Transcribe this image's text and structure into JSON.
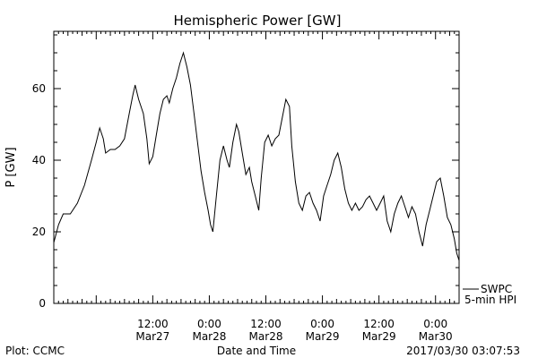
{
  "chart_data": {
    "type": "line",
    "title": "Hemispheric Power [GW]",
    "xlabel": "Date and Time",
    "ylabel": "P [GW]",
    "ylim": [
      0,
      76
    ],
    "yticks": [
      0,
      20,
      40,
      60
    ],
    "x_start": "2017-03-26T15:00",
    "x_end": "2017-03-30T05:00",
    "xticks": [
      {
        "x": "2017-03-27T12:00",
        "time": "12:00",
        "date": "Mar27"
      },
      {
        "x": "2017-03-28T00:00",
        "time": "0:00",
        "date": "Mar28"
      },
      {
        "x": "2017-03-28T12:00",
        "time": "12:00",
        "date": "Mar28"
      },
      {
        "x": "2017-03-29T00:00",
        "time": "0:00",
        "date": "Mar29"
      },
      {
        "x": "2017-03-29T12:00",
        "time": "12:00",
        "date": "Mar29"
      },
      {
        "x": "2017-03-30T00:00",
        "time": "0:00",
        "date": "Mar30"
      }
    ],
    "legend_position": "right-bottom",
    "legend": [
      "SWPC",
      "5-min HPI"
    ],
    "grid": false,
    "series": [
      {
        "name": "SWPC",
        "color": "#000000",
        "points": [
          [
            "2017-03-26T15:00",
            17
          ],
          [
            "2017-03-26T16:00",
            22
          ],
          [
            "2017-03-26T17:00",
            25
          ],
          [
            "2017-03-26T18:30",
            25
          ],
          [
            "2017-03-26T20:00",
            28
          ],
          [
            "2017-03-26T21:30",
            33
          ],
          [
            "2017-03-26T23:00",
            40
          ],
          [
            "2017-03-27T00:00",
            45
          ],
          [
            "2017-03-27T00:45",
            49
          ],
          [
            "2017-03-27T01:30",
            46
          ],
          [
            "2017-03-27T02:00",
            42
          ],
          [
            "2017-03-27T03:00",
            43
          ],
          [
            "2017-03-27T04:00",
            43
          ],
          [
            "2017-03-27T05:00",
            44
          ],
          [
            "2017-03-27T06:00",
            46
          ],
          [
            "2017-03-27T07:00",
            53
          ],
          [
            "2017-03-27T07:45",
            58
          ],
          [
            "2017-03-27T08:15",
            61
          ],
          [
            "2017-03-27T09:00",
            57
          ],
          [
            "2017-03-27T10:00",
            53
          ],
          [
            "2017-03-27T10:45",
            46
          ],
          [
            "2017-03-27T11:15",
            39
          ],
          [
            "2017-03-27T12:00",
            41
          ],
          [
            "2017-03-27T12:45",
            47
          ],
          [
            "2017-03-27T13:30",
            53
          ],
          [
            "2017-03-27T14:15",
            57
          ],
          [
            "2017-03-27T15:00",
            58
          ],
          [
            "2017-03-27T15:30",
            56
          ],
          [
            "2017-03-27T16:15",
            60
          ],
          [
            "2017-03-27T17:00",
            63
          ],
          [
            "2017-03-27T17:45",
            67
          ],
          [
            "2017-03-27T18:30",
            70
          ],
          [
            "2017-03-27T19:15",
            66
          ],
          [
            "2017-03-27T20:00",
            61
          ],
          [
            "2017-03-27T20:45",
            53
          ],
          [
            "2017-03-27T21:30",
            45
          ],
          [
            "2017-03-27T22:15",
            37
          ],
          [
            "2017-03-27T23:00",
            31
          ],
          [
            "2017-03-27T23:45",
            26
          ],
          [
            "2017-03-28T00:15",
            22
          ],
          [
            "2017-03-28T00:45",
            20
          ],
          [
            "2017-03-28T01:30",
            30
          ],
          [
            "2017-03-28T02:15",
            40
          ],
          [
            "2017-03-28T03:00",
            44
          ],
          [
            "2017-03-28T03:45",
            40
          ],
          [
            "2017-03-28T04:15",
            38
          ],
          [
            "2017-03-28T05:00",
            45
          ],
          [
            "2017-03-28T05:45",
            50
          ],
          [
            "2017-03-28T06:15",
            48
          ],
          [
            "2017-03-28T07:00",
            42
          ],
          [
            "2017-03-28T07:45",
            36
          ],
          [
            "2017-03-28T08:30",
            38
          ],
          [
            "2017-03-28T09:00",
            34
          ],
          [
            "2017-03-28T09:45",
            30
          ],
          [
            "2017-03-28T10:30",
            26
          ],
          [
            "2017-03-28T11:00",
            35
          ],
          [
            "2017-03-28T11:45",
            45
          ],
          [
            "2017-03-28T12:30",
            47
          ],
          [
            "2017-03-28T13:15",
            44
          ],
          [
            "2017-03-28T14:00",
            46
          ],
          [
            "2017-03-28T14:45",
            47
          ],
          [
            "2017-03-28T15:30",
            52
          ],
          [
            "2017-03-28T16:15",
            57
          ],
          [
            "2017-03-28T17:00",
            55
          ],
          [
            "2017-03-28T17:30",
            44
          ],
          [
            "2017-03-28T18:15",
            34
          ],
          [
            "2017-03-28T19:00",
            28
          ],
          [
            "2017-03-28T19:45",
            26
          ],
          [
            "2017-03-28T20:30",
            30
          ],
          [
            "2017-03-28T21:15",
            31
          ],
          [
            "2017-03-28T22:00",
            28
          ],
          [
            "2017-03-28T22:45",
            26
          ],
          [
            "2017-03-28T23:30",
            23
          ],
          [
            "2017-03-29T00:15",
            30
          ],
          [
            "2017-03-29T01:00",
            33
          ],
          [
            "2017-03-29T01:45",
            36
          ],
          [
            "2017-03-29T02:30",
            40
          ],
          [
            "2017-03-29T03:15",
            42
          ],
          [
            "2017-03-29T04:00",
            38
          ],
          [
            "2017-03-29T04:45",
            32
          ],
          [
            "2017-03-29T05:30",
            28
          ],
          [
            "2017-03-29T06:15",
            26
          ],
          [
            "2017-03-29T07:00",
            28
          ],
          [
            "2017-03-29T07:45",
            26
          ],
          [
            "2017-03-29T08:30",
            27
          ],
          [
            "2017-03-29T09:15",
            29
          ],
          [
            "2017-03-29T10:00",
            30
          ],
          [
            "2017-03-29T10:45",
            28
          ],
          [
            "2017-03-29T11:30",
            26
          ],
          [
            "2017-03-29T12:15",
            28
          ],
          [
            "2017-03-29T13:00",
            30
          ],
          [
            "2017-03-29T13:45",
            23
          ],
          [
            "2017-03-29T14:30",
            20
          ],
          [
            "2017-03-29T15:15",
            25
          ],
          [
            "2017-03-29T16:00",
            28
          ],
          [
            "2017-03-29T16:45",
            30
          ],
          [
            "2017-03-29T17:30",
            27
          ],
          [
            "2017-03-29T18:15",
            24
          ],
          [
            "2017-03-29T19:00",
            27
          ],
          [
            "2017-03-29T19:45",
            25
          ],
          [
            "2017-03-29T20:30",
            20
          ],
          [
            "2017-03-29T21:15",
            16
          ],
          [
            "2017-03-29T22:00",
            22
          ],
          [
            "2017-03-29T22:45",
            26
          ],
          [
            "2017-03-29T23:30",
            30
          ],
          [
            "2017-03-30T00:15",
            34
          ],
          [
            "2017-03-30T01:00",
            35
          ],
          [
            "2017-03-30T01:45",
            30
          ],
          [
            "2017-03-30T02:30",
            24
          ],
          [
            "2017-03-30T03:15",
            22
          ],
          [
            "2017-03-30T04:00",
            18
          ],
          [
            "2017-03-30T04:30",
            14
          ],
          [
            "2017-03-30T05:00",
            12
          ]
        ]
      },
      {
        "name": "5-min HPI",
        "color": "#000000",
        "points": []
      }
    ],
    "source_label": "Plot: CCMC",
    "timestamp": "2017/03/30 03:07:53"
  }
}
